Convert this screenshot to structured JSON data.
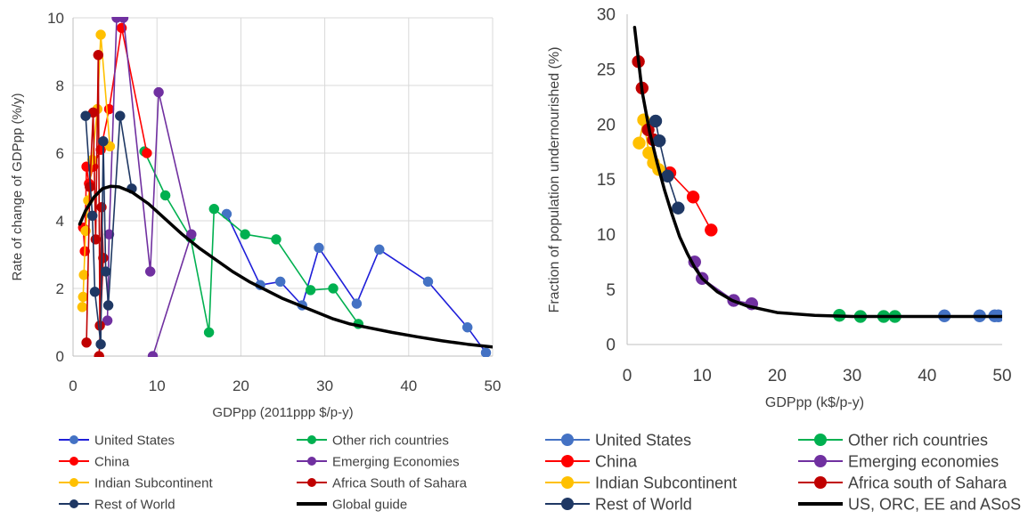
{
  "chart_data": [
    {
      "type": "line",
      "xlabel": "GDPpp (2011ppp $/p-y)",
      "ylabel": "Rate of change of GDPpp (%/y)",
      "xlim": [
        0,
        50
      ],
      "ylim": [
        0,
        10
      ],
      "xticks": [
        0,
        10,
        20,
        30,
        40,
        50
      ],
      "yticks": [
        0,
        2,
        4,
        6,
        8,
        10
      ],
      "xtick_labels": [
        "0",
        "10",
        "20",
        "30",
        "40",
        "50"
      ],
      "ytick_labels": [
        "0",
        "2",
        "4",
        "6",
        "8",
        "10"
      ],
      "grid": true,
      "legend_position": "bottom",
      "series": [
        {
          "name": "United States",
          "color": "#1f1fd9",
          "marker_color": "#4472c4",
          "x": [
            18.3,
            22.3,
            24.7,
            27.3,
            29.3,
            33.8,
            36.5,
            42.3,
            47.0,
            49.2
          ],
          "y": [
            4.2,
            2.1,
            2.2,
            1.5,
            3.2,
            1.55,
            3.15,
            2.2,
            0.85,
            0.1
          ]
        },
        {
          "name": "Other rich countries",
          "color": "#00b050",
          "marker_color": "#00b050",
          "x": [
            8.5,
            11.0,
            14.0,
            16.2,
            16.8,
            20.5,
            24.2,
            28.3,
            31.0,
            34.0
          ],
          "y": [
            6.05,
            4.75,
            3.5,
            0.7,
            4.35,
            3.6,
            3.45,
            1.95,
            2.0,
            0.95
          ]
        },
        {
          "name": "China",
          "color": "#ff0000",
          "marker_color": "#ff0000",
          "x": [
            1.2,
            1.4,
            1.6,
            1.9,
            2.4,
            3.3,
            4.3,
            5.8,
            8.8
          ],
          "y": [
            3.8,
            3.1,
            5.6,
            5.1,
            5.6,
            6.1,
            7.3,
            9.7,
            6.0
          ]
        },
        {
          "name": "Emerging Economies",
          "color": "#7030a0",
          "marker_color": "#7030a0",
          "x": [
            4.1,
            4.3,
            5.2,
            6.0,
            9.2,
            10.2,
            14.1,
            9.5
          ],
          "y": [
            1.05,
            3.6,
            10.0,
            10.0,
            2.5,
            7.8,
            3.6,
            0.0
          ]
        },
        {
          "name": "Indian Subcontinent",
          "color": "#ffc000",
          "marker_color": "#ffc000",
          "x": [
            1.1,
            1.2,
            1.3,
            1.5,
            1.8,
            2.3,
            2.9,
            3.3,
            4.4
          ],
          "y": [
            1.45,
            1.75,
            2.4,
            3.7,
            4.6,
            5.8,
            7.3,
            9.5,
            6.2
          ]
        },
        {
          "name": "Africa South of Sahara",
          "color": "#c00000",
          "marker_color": "#c00000",
          "x": [
            1.6,
            2.0,
            2.4,
            2.7,
            3.0,
            3.2,
            3.4,
            3.6,
            3.1
          ],
          "y": [
            0.4,
            5.0,
            7.2,
            3.45,
            8.9,
            0.9,
            4.4,
            2.9,
            0.0
          ]
        },
        {
          "name": "Rest of World",
          "color": "#1f3864",
          "marker_color": "#1f3864",
          "x": [
            1.5,
            2.3,
            2.6,
            3.3,
            3.6,
            3.9,
            4.2,
            5.6,
            7.0
          ],
          "y": [
            7.1,
            4.15,
            1.9,
            0.35,
            6.35,
            2.5,
            1.5,
            7.1,
            4.95
          ]
        },
        {
          "name": "Global guide",
          "color": "#000000",
          "line_width": 3.5,
          "marker": "none",
          "x": [
            0.8,
            1.5,
            2.5,
            3.5,
            4.5,
            5.5,
            7.0,
            9.0,
            11.0,
            13.0,
            15.0,
            17.0,
            19.0,
            21.0,
            23.0,
            25.0,
            27.0,
            29.0,
            31.0,
            33.0,
            35.0,
            38.0,
            41.0,
            44.0,
            47.0,
            50.0
          ],
          "y": [
            3.9,
            4.3,
            4.7,
            4.95,
            5.02,
            5.0,
            4.85,
            4.5,
            4.05,
            3.6,
            3.2,
            2.85,
            2.5,
            2.2,
            1.95,
            1.7,
            1.5,
            1.3,
            1.1,
            0.95,
            0.85,
            0.7,
            0.57,
            0.45,
            0.35,
            0.27
          ]
        }
      ]
    },
    {
      "type": "scatter",
      "xlabel": "GDPpp (k$/p-y)",
      "ylabel": "Fraction of population undernourished (%)",
      "xlim": [
        0,
        50
      ],
      "ylim": [
        0,
        30
      ],
      "xticks": [
        0,
        10,
        20,
        30,
        40,
        50
      ],
      "yticks": [
        0,
        5,
        10,
        15,
        20,
        25,
        30
      ],
      "xtick_labels": [
        "0",
        "10",
        "20",
        "30",
        "40",
        "50"
      ],
      "ytick_labels": [
        "0",
        "5",
        "10",
        "15",
        "20",
        "25",
        "30"
      ],
      "grid": false,
      "legend_position": "bottom",
      "series": [
        {
          "name": "United States",
          "color": "#4472c4",
          "marker_color": "#4472c4",
          "connect": false,
          "x": [
            42.3,
            47.0,
            49.0,
            49.5
          ],
          "y": [
            2.6,
            2.6,
            2.6,
            2.6
          ]
        },
        {
          "name": "Other rich countries",
          "color": "#00b050",
          "marker_color": "#00b050",
          "connect": false,
          "x": [
            28.3,
            31.1,
            34.2,
            35.7
          ],
          "y": [
            2.65,
            2.55,
            2.55,
            2.55
          ]
        },
        {
          "name": "China",
          "color": "#ff0000",
          "marker_color": "#ff0000",
          "connect": true,
          "x": [
            5.7,
            8.8,
            11.2
          ],
          "y": [
            15.6,
            13.4,
            10.4
          ]
        },
        {
          "name": "Emerging economies",
          "color": "#7030a0",
          "marker_color": "#7030a0",
          "connect": true,
          "x": [
            9.0,
            10.0,
            14.2,
            16.6
          ],
          "y": [
            7.5,
            6.0,
            4.0,
            3.7
          ]
        },
        {
          "name": "Indian Subcontinent",
          "color": "#ffc000",
          "marker_color": "#ffc000",
          "connect": true,
          "x": [
            1.6,
            2.2,
            2.9,
            3.5,
            4.2
          ],
          "y": [
            18.3,
            20.4,
            17.4,
            16.5,
            15.9
          ]
        },
        {
          "name": "Africa south of Sahara",
          "color": "#c00000",
          "marker_color": "#c00000",
          "connect": true,
          "x": [
            1.5,
            2.0,
            2.8,
            3.5
          ],
          "y": [
            25.7,
            23.3,
            19.5,
            18.6
          ]
        },
        {
          "name": "Rest of World",
          "color": "#1f3864",
          "marker_color": "#1f3864",
          "marker_style": "dark",
          "connect": true,
          "x": [
            3.8,
            4.3,
            5.4,
            6.8
          ],
          "y": [
            20.3,
            18.5,
            15.3,
            12.4
          ]
        },
        {
          "name": "US, ORC, EE and ASoS",
          "color": "#000000",
          "line_width": 3.5,
          "marker": "none",
          "connect": true,
          "x": [
            1.0,
            2.0,
            3.0,
            4.0,
            5.0,
            6.0,
            7.0,
            8.0,
            9.0,
            10.0,
            12.0,
            14.0,
            16.0,
            18.0,
            20.0,
            25.0,
            30.0,
            35.0,
            40.0,
            45.0,
            50.0
          ],
          "y": [
            28.8,
            23.0,
            19.3,
            16.5,
            14.0,
            11.8,
            9.8,
            8.3,
            7.0,
            6.0,
            4.8,
            4.0,
            3.5,
            3.2,
            2.9,
            2.65,
            2.55,
            2.55,
            2.55,
            2.55,
            2.55
          ]
        }
      ]
    }
  ]
}
